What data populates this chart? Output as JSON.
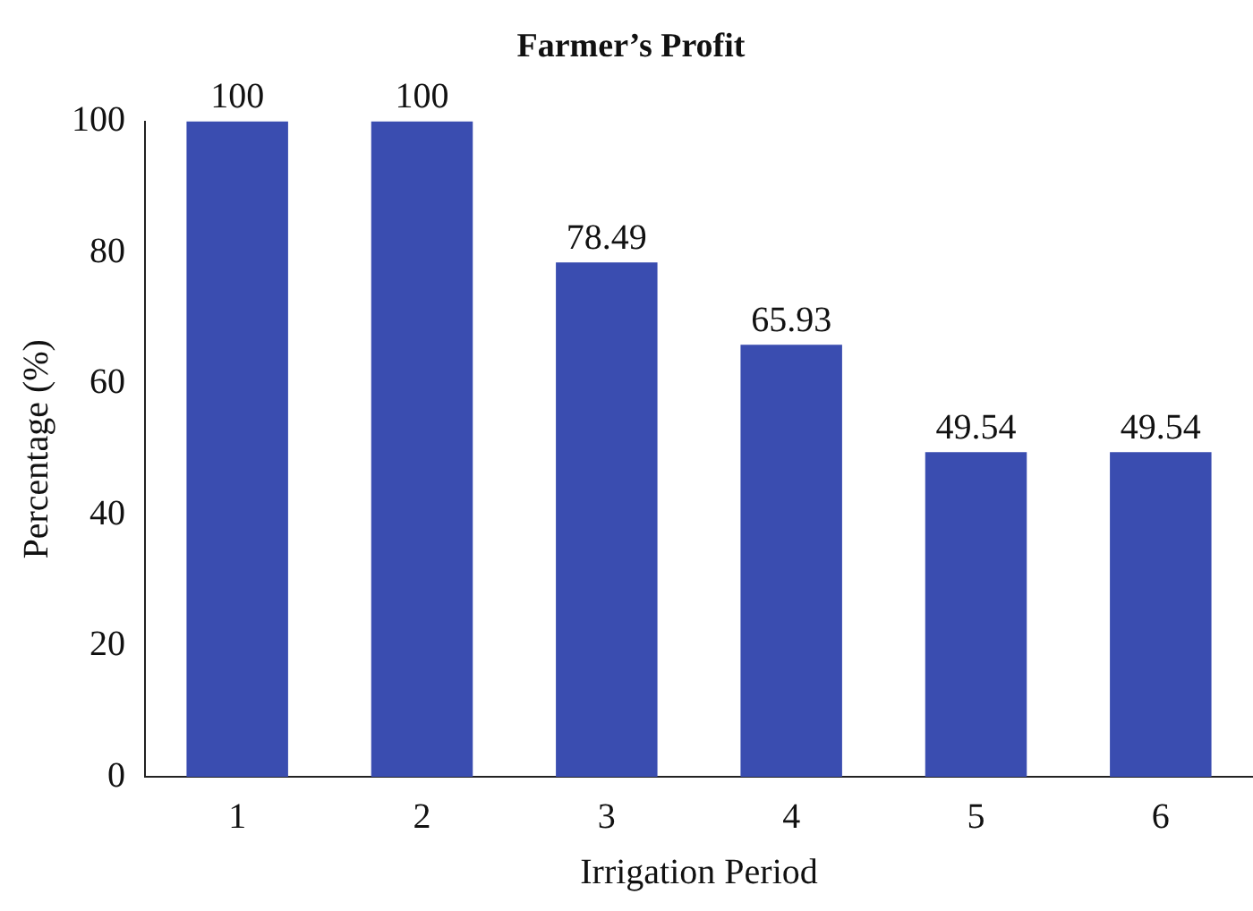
{
  "chart_data": {
    "type": "bar",
    "title": "Farmer’s Profit",
    "xlabel": "Irrigation Period",
    "ylabel": "Percentage (%)",
    "categories": [
      "1",
      "2",
      "3",
      "4",
      "5",
      "6"
    ],
    "values": [
      100,
      100,
      78.49,
      65.93,
      49.54,
      49.54
    ],
    "color": "#3a4db0",
    "ylim": [
      0,
      100
    ],
    "yticks": [
      0,
      20,
      40,
      60,
      80,
      100
    ],
    "grid": false,
    "data_labels": true
  }
}
